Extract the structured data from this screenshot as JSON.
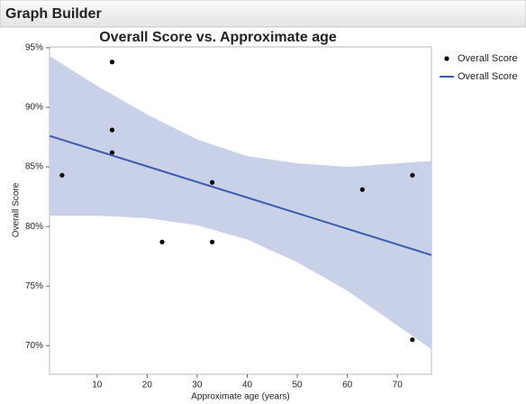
{
  "header": {
    "title": "Graph Builder"
  },
  "chart_data": {
    "type": "scatter",
    "title": "Overall Score vs. Approximate age",
    "x_label": "Approximate age (years)",
    "y_label": "Overall Score",
    "xlim": [
      0.5,
      76.8
    ],
    "ylim": [
      67.6,
      95.6
    ],
    "xticks": [
      10,
      20,
      30,
      40,
      50,
      60,
      70
    ],
    "yticks": [
      {
        "value": 70,
        "label": "70%"
      },
      {
        "value": 75,
        "label": "75%"
      },
      {
        "value": 80,
        "label": "80%"
      },
      {
        "value": 85,
        "label": "85%"
      },
      {
        "value": 90,
        "label": "90%"
      },
      {
        "value": 95,
        "label": "95%"
      }
    ],
    "series": [
      {
        "name": "Overall Score",
        "color": "#000000",
        "x": [
          3,
          13,
          13,
          13,
          23,
          33,
          33,
          63,
          73,
          73
        ],
        "values": [
          84.3,
          93.8,
          88.1,
          86.2,
          78.7,
          83.7,
          78.7,
          83.1,
          84.3,
          70.5
        ]
      },
      {
        "name": "Overall Score",
        "color": "#3a5bb0",
        "x": [
          0.5,
          76.8
        ],
        "values": [
          87.6,
          77.6
        ]
      }
    ],
    "band": {
      "color": "#c9d1e9",
      "x": [
        0.5,
        10,
        20,
        30,
        40,
        50,
        60,
        70,
        76.8
      ],
      "upper": [
        94.3,
        91.8,
        89.4,
        87.3,
        85.9,
        85.3,
        85.0,
        85.3,
        85.5
      ],
      "lower": [
        80.9,
        80.9,
        80.7,
        80.1,
        78.9,
        77.0,
        74.6,
        71.7,
        69.7
      ]
    },
    "legend": "right"
  }
}
